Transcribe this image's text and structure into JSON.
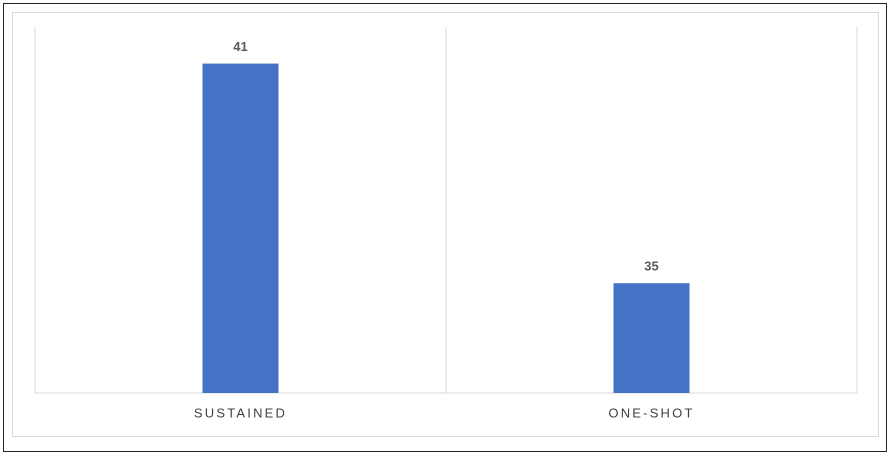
{
  "chart_data": {
    "type": "bar",
    "categories": [
      "SUSTAINED",
      "ONE-SHOT"
    ],
    "values": [
      41,
      35
    ],
    "color": "#4472c4",
    "ylim": [
      32,
      42
    ]
  }
}
